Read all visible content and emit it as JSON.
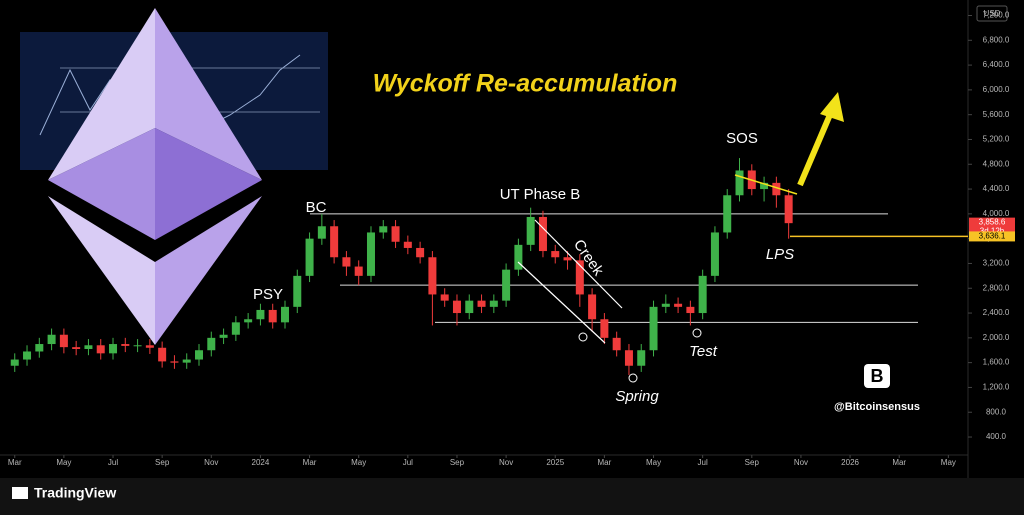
{
  "chart_data": {
    "type": "candlestick",
    "title": "Wyckoff Re-accumulation",
    "currency": "USD",
    "annotations": [
      "BC",
      "PSY",
      "UT Phase B",
      "Creek",
      "SOS",
      "LPS",
      "Test",
      "Spring",
      "@Bitcoinsensus"
    ],
    "brand": "TradingView",
    "up_color": "#3fb24a",
    "down_color": "#ef3b3b",
    "x": [
      2,
      2.5,
      3,
      3.5,
      4,
      4.5,
      5,
      5.5,
      6,
      6.5,
      7,
      7.5,
      8,
      8.5,
      9,
      9.5,
      10,
      10.5,
      11,
      11.5,
      12,
      12.5,
      13,
      13.5,
      14,
      14.5,
      15,
      15.5,
      16,
      16.5,
      17,
      17.5,
      18,
      18.5,
      19,
      19.5,
      20,
      20.5,
      21,
      21.5,
      22,
      22.5,
      23,
      23.5,
      24,
      24.5,
      25,
      25.5,
      26,
      26.5,
      27,
      27.5,
      28,
      28.5,
      29,
      29.5,
      30,
      30.5,
      31,
      31.5,
      32,
      32.5,
      33,
      33.5
    ],
    "open": [
      1550,
      1650,
      1780,
      1900,
      2050,
      1850,
      1820,
      1880,
      1750,
      1900,
      1870,
      1880,
      1840,
      1620,
      1600,
      1650,
      1800,
      2000,
      2050,
      2250,
      2300,
      2450,
      2250,
      2500,
      3000,
      3600,
      3800,
      3300,
      3150,
      3000,
      3700,
      3800,
      3550,
      3450,
      3300,
      2700,
      2600,
      2400,
      2600,
      2500,
      2600,
      3100,
      3500,
      3950,
      3400,
      3300,
      3250,
      2700,
      2300,
      2000,
      1800,
      1550,
      1800,
      2500,
      2550,
      2500,
      2400,
      3000,
      3700,
      4300,
      4700,
      4400,
      4500,
      4300
    ],
    "high": [
      1750,
      1880,
      2000,
      2150,
      2150,
      1950,
      1980,
      1980,
      2000,
      2000,
      1980,
      1980,
      1940,
      1720,
      1750,
      1900,
      2100,
      2150,
      2350,
      2400,
      2550,
      2550,
      2600,
      3100,
      3700,
      4000,
      3900,
      3400,
      3250,
      3800,
      3900,
      3900,
      3650,
      3550,
      3400,
      2800,
      2700,
      2700,
      2700,
      2700,
      3200,
      3600,
      4100,
      4050,
      3500,
      3400,
      3350,
      2800,
      2400,
      2100,
      1900,
      1900,
      2600,
      2700,
      2650,
      2600,
      3100,
      3800,
      4400,
      4900,
      4800,
      4600,
      4600,
      4400
    ],
    "low": [
      1450,
      1550,
      1680,
      1800,
      1750,
      1720,
      1720,
      1650,
      1650,
      1770,
      1770,
      1740,
      1520,
      1500,
      1500,
      1550,
      1700,
      1900,
      1950,
      2150,
      2200,
      2150,
      2150,
      2400,
      2900,
      3500,
      3200,
      3000,
      2850,
      2900,
      3600,
      3450,
      3350,
      3200,
      2200,
      2500,
      2200,
      2300,
      2400,
      2400,
      2500,
      3000,
      3400,
      3300,
      3200,
      3100,
      2500,
      2100,
      1900,
      1700,
      1400,
      1450,
      1700,
      2400,
      2400,
      2200,
      2300,
      2900,
      3600,
      4200,
      4300,
      4200,
      4100,
      3600
    ],
    "close": [
      1650,
      1780,
      1900,
      2050,
      1850,
      1820,
      1880,
      1750,
      1900,
      1870,
      1880,
      1840,
      1620,
      1600,
      1650,
      1800,
      2000,
      2050,
      2250,
      2300,
      2450,
      2250,
      2500,
      3000,
      3600,
      3800,
      3300,
      3150,
      3000,
      3700,
      3800,
      3550,
      3450,
      3300,
      2700,
      2600,
      2400,
      2600,
      2500,
      2600,
      3100,
      3500,
      3950,
      3400,
      3300,
      3250,
      2700,
      2300,
      2000,
      1800,
      1550,
      1800,
      2500,
      2550,
      2500,
      2400,
      3000,
      3700,
      4300,
      4700,
      4400,
      4500,
      4300,
      3850
    ],
    "levels": [
      4000,
      2850,
      2250
    ],
    "price_tags": [
      {
        "value": 3858.6,
        "label": "3,858.6",
        "color": "#ef3b3b"
      },
      {
        "value": 3636.1,
        "label": "3,636.1",
        "color": "#f7c325"
      }
    ],
    "countdown": "3d 12h",
    "xlim": [
      1.4,
      40.8
    ],
    "xticks": [
      {
        "value": 2,
        "label": "Mar"
      },
      {
        "value": 4,
        "label": "May"
      },
      {
        "value": 6,
        "label": "Jul"
      },
      {
        "value": 8,
        "label": "Sep"
      },
      {
        "value": 10,
        "label": "Nov"
      },
      {
        "value": 12,
        "label": "2024"
      },
      {
        "value": 14,
        "label": "Mar"
      },
      {
        "value": 16,
        "label": "May"
      },
      {
        "value": 18,
        "label": "Jul"
      },
      {
        "value": 20,
        "label": "Sep"
      },
      {
        "value": 22,
        "label": "Nov"
      },
      {
        "value": 24,
        "label": "2025"
      },
      {
        "value": 26,
        "label": "Mar"
      },
      {
        "value": 28,
        "label": "May"
      },
      {
        "value": 30,
        "label": "Jul"
      },
      {
        "value": 32,
        "label": "Sep"
      },
      {
        "value": 34,
        "label": "Nov"
      },
      {
        "value": 36,
        "label": "2026"
      },
      {
        "value": 38,
        "label": "Mar"
      },
      {
        "value": 40,
        "label": "May"
      }
    ],
    "ylim": [
      110,
      7450
    ],
    "yticks": [
      {
        "value": 400,
        "label": "400.0"
      },
      {
        "value": 800,
        "label": "800.0"
      },
      {
        "value": 1200,
        "label": "1,200.0"
      },
      {
        "value": 1600,
        "label": "1,600.0"
      },
      {
        "value": 2000,
        "label": "2,000.0"
      },
      {
        "value": 2400,
        "label": "2,400.0"
      },
      {
        "value": 2800,
        "label": "2,800.0"
      },
      {
        "value": 3200,
        "label": "3,200.0"
      },
      {
        "value": 3600,
        "label": "3,600.0"
      },
      {
        "value": 4000,
        "label": "4,000.0"
      },
      {
        "value": 4400,
        "label": "4,400.0"
      },
      {
        "value": 4800,
        "label": "4,800.0"
      },
      {
        "value": 5200,
        "label": "5,200.0"
      },
      {
        "value": 5600,
        "label": "5,600.0"
      },
      {
        "value": 6000,
        "label": "6,000.0"
      },
      {
        "value": 6400,
        "label": "6,400.0"
      },
      {
        "value": 6800,
        "label": "6,800.0"
      },
      {
        "value": 7200,
        "label": "7,200.0"
      }
    ]
  }
}
